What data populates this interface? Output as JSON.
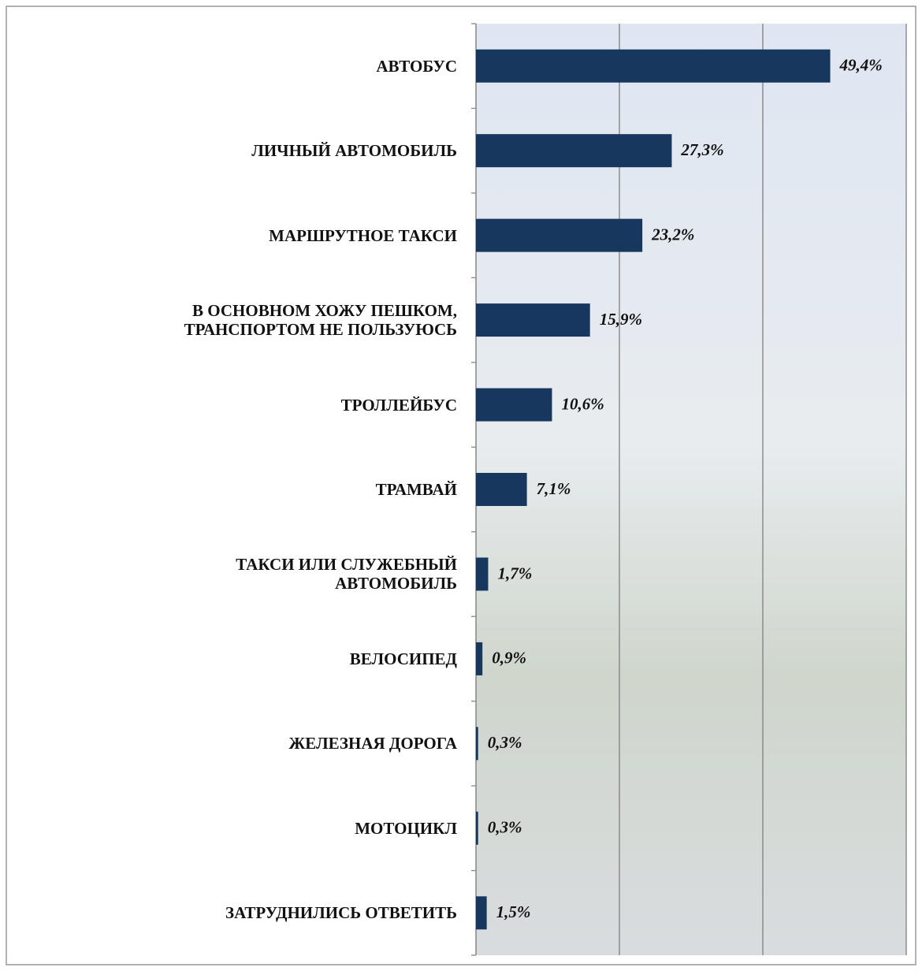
{
  "chart_data": {
    "type": "bar",
    "orientation": "horizontal",
    "categories": [
      "АВТОБУС",
      "ЛИЧНЫЙ АВТОМОБИЛЬ",
      "МАРШРУТНОЕ ТАКСИ",
      "В ОСНОВНОМ ХОЖУ ПЕШКОМ,\nТРАНСПОРТОМ НЕ ПОЛЬЗУЮСЬ",
      "ТРОЛЛЕЙБУС",
      "ТРАМВАЙ",
      "ТАКСИ ИЛИ СЛУЖЕБНЫЙ\nАВТОМОБИЛЬ",
      "ВЕЛОСИПЕД",
      "ЖЕЛЕЗНАЯ ДОРОГА",
      "МОТОЦИКЛ",
      "ЗАТРУДНИЛИСЬ ОТВЕТИТЬ"
    ],
    "values": [
      49.4,
      27.3,
      23.2,
      15.9,
      10.6,
      7.1,
      1.7,
      0.9,
      0.3,
      0.3,
      1.5
    ],
    "value_labels": [
      "49,4%",
      "27,3%",
      "23,2%",
      "15,9%",
      "10,6%",
      "7,1%",
      "1,7%",
      "0,9%",
      "0,3%",
      "0,3%",
      "1,5%"
    ],
    "color": "#17375e",
    "xlim": [
      0,
      60
    ],
    "xticks": [
      0,
      20,
      40,
      60
    ],
    "grid": true
  }
}
